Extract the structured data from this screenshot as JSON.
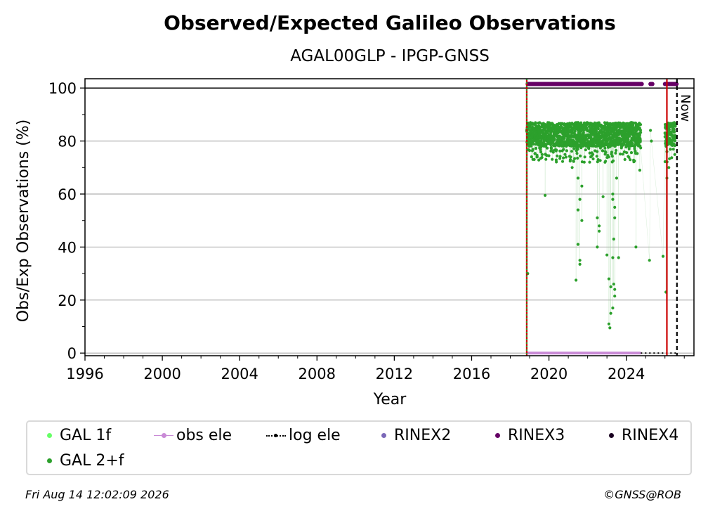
{
  "chart_data": {
    "type": "scatter",
    "title": "Observed/Expected Galileo Observations",
    "subtitle": "AGAL00GLP - IPGP-GNSS",
    "xlabel": "Year",
    "ylabel": "Obs/Exp Observations (%)",
    "xlim": [
      1996,
      2027.5
    ],
    "ylim": [
      -1,
      103.5
    ],
    "xticks": [
      "1996",
      "2000",
      "2004",
      "2008",
      "2012",
      "2016",
      "2020",
      "2024"
    ],
    "yticks": [
      "0",
      "20",
      "40",
      "60",
      "80",
      "100"
    ],
    "grid": "horizontal",
    "now_label": "Now",
    "vlines": [
      {
        "x": 2018.85,
        "color": "#cc0000",
        "style": "solid"
      },
      {
        "x": 2018.85,
        "color": "#2ca02c",
        "style": "dotted"
      },
      {
        "x": 2026.1,
        "color": "#cc0000",
        "style": "solid"
      },
      {
        "x": 2026.62,
        "color": "#000000",
        "style": "dashed"
      }
    ],
    "series": [
      {
        "name": "GAL 1f",
        "color": "#66ff66",
        "values": []
      },
      {
        "name": "GAL 2+f",
        "color": "#2ca02c",
        "base_band": [
          78,
          87
        ],
        "x_ranges": [
          [
            2018.85,
            2024.75
          ],
          [
            2026.0,
            2026.55
          ]
        ],
        "outliers": [
          [
            2018.9,
            30
          ],
          [
            2019.8,
            59.5
          ],
          [
            2021.4,
            27.5
          ],
          [
            2021.5,
            41
          ],
          [
            2021.6,
            35
          ],
          [
            2021.6,
            33.5
          ],
          [
            2021.5,
            54
          ],
          [
            2021.6,
            58
          ],
          [
            2021.7,
            50
          ],
          [
            2021.2,
            70
          ],
          [
            2021.5,
            66
          ],
          [
            2021.7,
            63
          ],
          [
            2022.5,
            51
          ],
          [
            2022.6,
            48
          ],
          [
            2022.5,
            40
          ],
          [
            2022.6,
            46
          ],
          [
            2022.8,
            59
          ],
          [
            2022.9,
            72
          ],
          [
            2023.0,
            37
          ],
          [
            2023.1,
            28
          ],
          [
            2023.3,
            58
          ],
          [
            2023.3,
            60
          ],
          [
            2023.3,
            36
          ],
          [
            2023.2,
            25
          ],
          [
            2023.3,
            17
          ],
          [
            2023.2,
            15
          ],
          [
            2023.1,
            11
          ],
          [
            2023.15,
            9.5
          ],
          [
            2023.35,
            26
          ],
          [
            2023.4,
            24
          ],
          [
            2023.4,
            21.5
          ],
          [
            2023.35,
            43
          ],
          [
            2023.4,
            51
          ],
          [
            2023.4,
            55
          ],
          [
            2023.6,
            36
          ],
          [
            2023.5,
            66
          ],
          [
            2024.5,
            40
          ],
          [
            2024.7,
            69
          ],
          [
            2025.2,
            35
          ],
          [
            2025.25,
            84
          ],
          [
            2025.3,
            80
          ],
          [
            2025.9,
            36.5
          ],
          [
            2026.05,
            23
          ],
          [
            2026.1,
            66
          ],
          [
            2026.2,
            70
          ],
          [
            2026.1,
            76
          ]
        ]
      },
      {
        "name": "obs ele",
        "color": "#c98ad6",
        "y": 0,
        "x_range": [
          2018.85,
          2024.75
        ]
      },
      {
        "name": "log ele",
        "color": "#000000",
        "y": 0,
        "x_range": [
          2024.75,
          2026.6
        ]
      },
      {
        "name": "RINEX2",
        "color": "#7b68b8",
        "values": []
      },
      {
        "name": "RINEX3",
        "color": "#660066",
        "y": 101.5,
        "x_ranges": [
          [
            2018.9,
            2024.8
          ],
          [
            2025.25,
            2025.35
          ],
          [
            2026.0,
            2026.6
          ]
        ]
      },
      {
        "name": "RINEX4",
        "color": "#1a0021",
        "values": []
      }
    ]
  },
  "legend": {
    "gal1f": "GAL 1f",
    "gal2f": "GAL 2+f",
    "obs_ele": "obs ele",
    "log_ele": "log ele",
    "rinex2": "RINEX2",
    "rinex3": "RINEX3",
    "rinex4": "RINEX4"
  },
  "footer": {
    "timestamp": "Fri Aug 14 12:02:09 2026",
    "credit": "©GNSS@ROB"
  }
}
